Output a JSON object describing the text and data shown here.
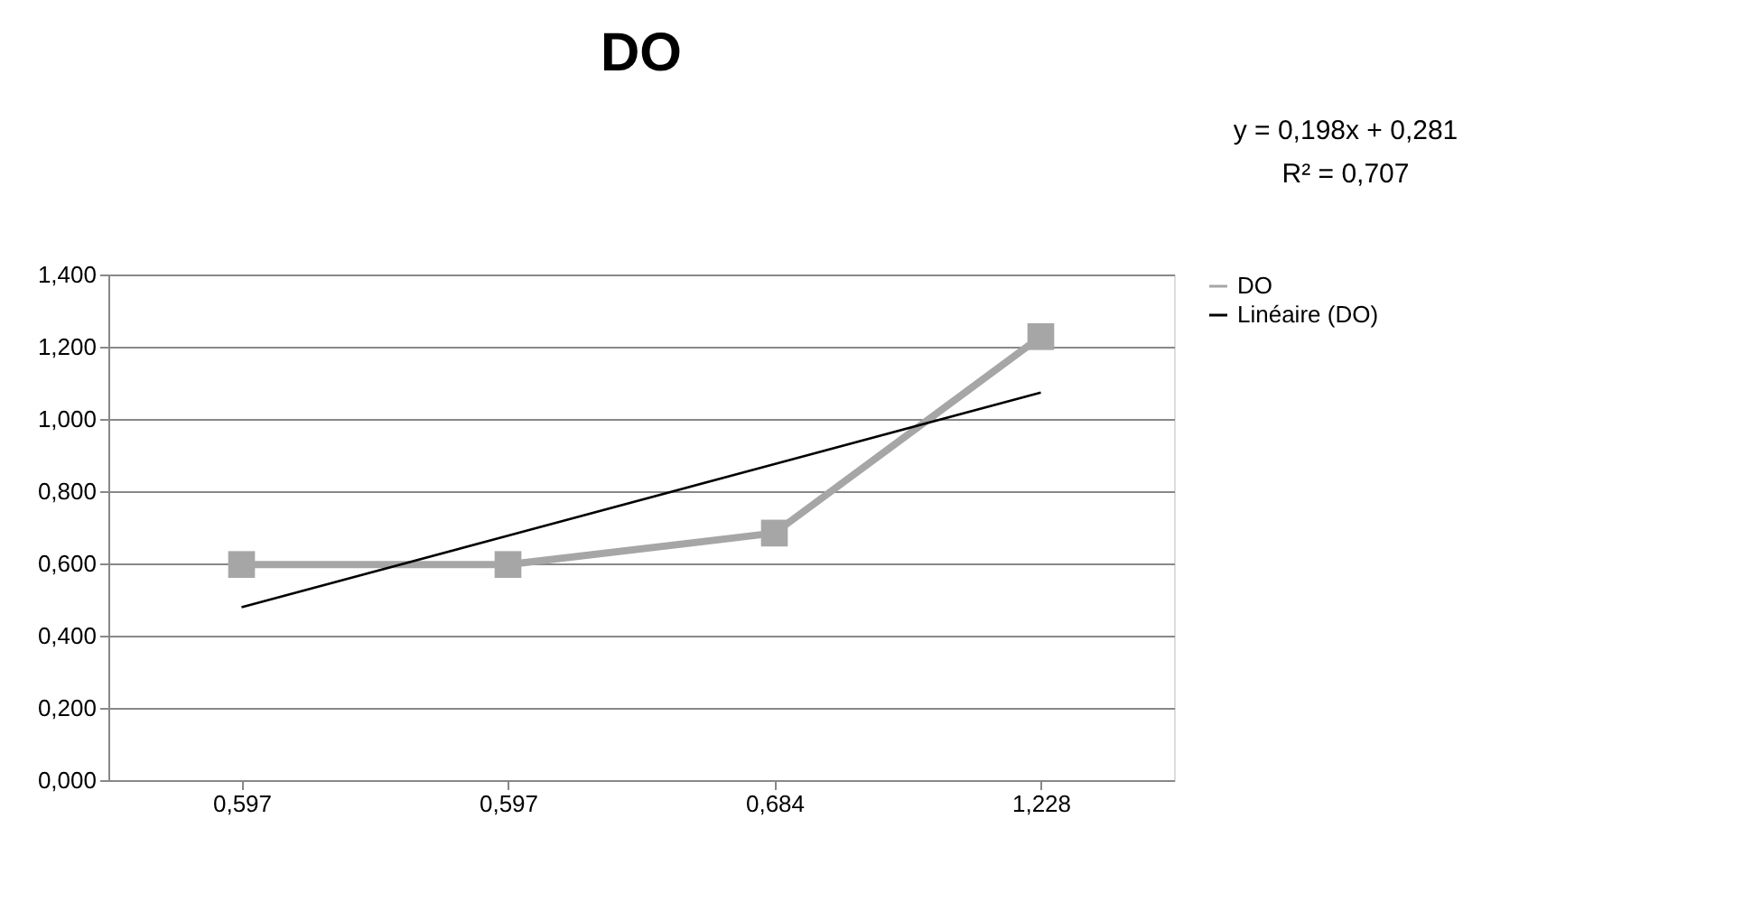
{
  "chart_data": {
    "type": "line",
    "title": "DO",
    "categories": [
      "0,597",
      "0,597",
      "0,684",
      "1,228"
    ],
    "series": [
      {
        "name": "DO",
        "color": "#a6a6a6",
        "values": [
          0.597,
          0.597,
          0.684,
          1.228
        ],
        "marker": "square"
      },
      {
        "name": "Linéaire (DO)",
        "color": "#000000",
        "values": [
          0.479,
          0.677,
          0.875,
          1.073
        ],
        "marker": "none"
      }
    ],
    "ylim": [
      0,
      1.4
    ],
    "yticks": [
      {
        "value": 0,
        "label": "0,000"
      },
      {
        "value": 0.2,
        "label": "0,200"
      },
      {
        "value": 0.4,
        "label": "0,400"
      },
      {
        "value": 0.6,
        "label": "0,600"
      },
      {
        "value": 0.8,
        "label": "0,800"
      },
      {
        "value": 1.0,
        "label": "1,000"
      },
      {
        "value": 1.2,
        "label": "1,200"
      },
      {
        "value": 1.4,
        "label": "1,400"
      }
    ],
    "grid": "y",
    "legend": "right",
    "annotations": [
      "y = 0,198x + 0,281",
      "R² = 0,707"
    ]
  }
}
